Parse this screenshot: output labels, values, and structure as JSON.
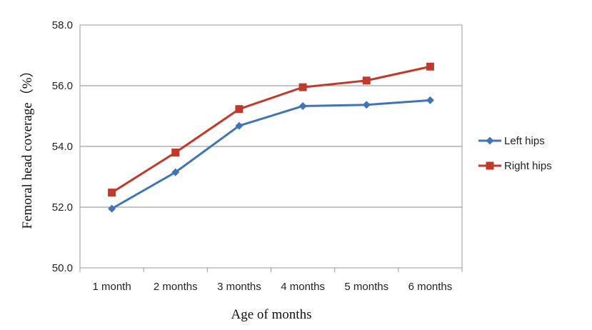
{
  "chart_data": {
    "type": "line",
    "categories": [
      "1 month",
      "2 months",
      "3 months",
      "4 months",
      "5 months",
      "6 months"
    ],
    "series": [
      {
        "name": "Left hips",
        "values": [
          51.95,
          53.15,
          54.68,
          55.33,
          55.37,
          55.52
        ],
        "color": "#3F75B5",
        "marker": "diamond"
      },
      {
        "name": "Right hips",
        "values": [
          52.48,
          53.8,
          55.23,
          55.95,
          56.17,
          56.63
        ],
        "color": "#C0392B",
        "marker": "square"
      }
    ],
    "yticks": [
      "50.0",
      "52.0",
      "54.0",
      "56.0",
      "58.0"
    ],
    "ylim": [
      50,
      58
    ],
    "xlabel": "Age of months",
    "ylabel": "Femoral head coverage（%）",
    "grid": "horizontal",
    "legend": "right"
  }
}
